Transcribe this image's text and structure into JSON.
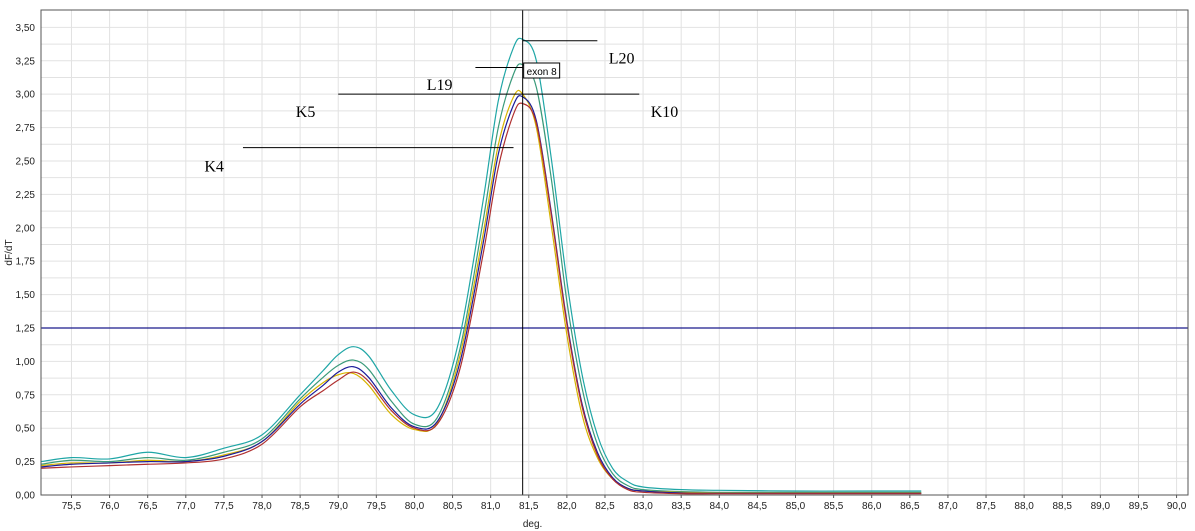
{
  "chart_data": {
    "type": "line",
    "xlabel": "deg.",
    "ylabel": "dF/dT",
    "xlim": [
      75.1,
      90.15
    ],
    "ylim": [
      0.0,
      3.63
    ],
    "xticks": [
      "75,5",
      "76,0",
      "76,5",
      "77,0",
      "77,5",
      "78,0",
      "78,5",
      "79,0",
      "79,5",
      "80,0",
      "80,5",
      "81,0",
      "81,5",
      "82,0",
      "82,5",
      "83,0",
      "83,5",
      "84,0",
      "84,5",
      "85,0",
      "85,5",
      "86,0",
      "86,5",
      "87,0",
      "87,5",
      "88,0",
      "88,5",
      "89,0",
      "89,5",
      "90,0"
    ],
    "yticks": [
      "0,00",
      "0,25",
      "0,50",
      "0,75",
      "1,00",
      "1,25",
      "1,50",
      "1,75",
      "2,00",
      "2,25",
      "2,50",
      "2,75",
      "3,00",
      "3,25",
      "3,50"
    ],
    "grid": true,
    "threshold": {
      "y": 1.25,
      "color": "#1a1a8c"
    },
    "cursor": {
      "x": 81.42,
      "label": "exon 8"
    },
    "series": [
      {
        "color": "#1fa6a6",
        "x": [
          75.1,
          75.5,
          76.0,
          76.5,
          77.0,
          77.5,
          78.0,
          78.5,
          78.8,
          79.0,
          79.2,
          79.4,
          79.7,
          80.0,
          80.3,
          80.6,
          80.9,
          81.1,
          81.3,
          81.42,
          81.6,
          81.8,
          82.0,
          82.2,
          82.4,
          82.6,
          82.8,
          83.0,
          83.5,
          84.0,
          85.0,
          86.0,
          86.65
        ],
        "y": [
          0.25,
          0.28,
          0.27,
          0.32,
          0.28,
          0.35,
          0.45,
          0.75,
          0.93,
          1.05,
          1.11,
          1.04,
          0.78,
          0.6,
          0.65,
          1.2,
          2.2,
          2.95,
          3.35,
          3.41,
          3.25,
          2.5,
          1.6,
          0.9,
          0.45,
          0.2,
          0.1,
          0.06,
          0.04,
          0.035,
          0.03,
          0.03,
          0.03
        ]
      },
      {
        "color": "#3a9a7a",
        "x": [
          75.1,
          75.5,
          76.0,
          76.5,
          77.0,
          77.5,
          78.0,
          78.5,
          78.8,
          79.0,
          79.2,
          79.4,
          79.7,
          80.0,
          80.3,
          80.6,
          80.9,
          81.1,
          81.3,
          81.42,
          81.6,
          81.8,
          82.0,
          82.2,
          82.4,
          82.6,
          82.8,
          83.0,
          83.5,
          84.0,
          85.0,
          86.0,
          86.65
        ],
        "y": [
          0.23,
          0.26,
          0.25,
          0.28,
          0.26,
          0.32,
          0.42,
          0.72,
          0.88,
          0.97,
          1.01,
          0.94,
          0.7,
          0.53,
          0.58,
          1.1,
          2.05,
          2.75,
          3.15,
          3.22,
          3.05,
          2.35,
          1.45,
          0.8,
          0.38,
          0.16,
          0.07,
          0.04,
          0.025,
          0.02,
          0.02,
          0.02,
          0.02
        ]
      },
      {
        "color": "#d8b400",
        "x": [
          75.1,
          75.5,
          76.0,
          76.5,
          77.0,
          77.5,
          78.0,
          78.5,
          78.8,
          79.0,
          79.2,
          79.4,
          79.7,
          80.0,
          80.3,
          80.6,
          80.9,
          81.1,
          81.3,
          81.42,
          81.6,
          81.8,
          82.0,
          82.2,
          82.4,
          82.6,
          82.8,
          83.0,
          83.5,
          84.0,
          85.0,
          86.0,
          86.65
        ],
        "y": [
          0.22,
          0.24,
          0.24,
          0.26,
          0.25,
          0.3,
          0.4,
          0.7,
          0.84,
          0.9,
          0.91,
          0.82,
          0.6,
          0.49,
          0.54,
          1.05,
          1.95,
          2.62,
          2.98,
          3.0,
          2.75,
          2.0,
          1.2,
          0.6,
          0.28,
          0.12,
          0.05,
          0.03,
          0.02,
          0.015,
          0.015,
          0.015,
          0.015
        ]
      },
      {
        "color": "#1c1c9a",
        "x": [
          75.1,
          75.5,
          76.0,
          76.5,
          77.0,
          77.5,
          78.0,
          78.5,
          78.8,
          79.0,
          79.2,
          79.4,
          79.7,
          80.0,
          80.3,
          80.6,
          80.9,
          81.1,
          81.3,
          81.42,
          81.6,
          81.8,
          82.0,
          82.2,
          82.4,
          82.6,
          82.8,
          83.0,
          83.5,
          84.0,
          85.0,
          86.0,
          86.65
        ],
        "y": [
          0.21,
          0.23,
          0.24,
          0.25,
          0.25,
          0.29,
          0.4,
          0.68,
          0.82,
          0.92,
          0.96,
          0.88,
          0.65,
          0.51,
          0.55,
          1.0,
          1.88,
          2.55,
          2.92,
          2.98,
          2.8,
          2.1,
          1.3,
          0.68,
          0.32,
          0.13,
          0.05,
          0.03,
          0.015,
          0.012,
          0.012,
          0.012,
          0.012
        ]
      },
      {
        "color": "#b03030",
        "x": [
          75.1,
          75.5,
          76.0,
          76.5,
          77.0,
          77.5,
          78.0,
          78.5,
          78.8,
          79.0,
          79.2,
          79.4,
          79.7,
          80.0,
          80.3,
          80.6,
          80.9,
          81.1,
          81.3,
          81.42,
          81.6,
          81.8,
          82.0,
          82.2,
          82.4,
          82.6,
          82.8,
          83.0,
          83.5,
          84.0,
          85.0,
          86.0,
          86.65
        ],
        "y": [
          0.2,
          0.21,
          0.22,
          0.23,
          0.24,
          0.27,
          0.38,
          0.66,
          0.78,
          0.86,
          0.92,
          0.85,
          0.63,
          0.5,
          0.53,
          0.95,
          1.8,
          2.45,
          2.85,
          2.93,
          2.78,
          2.08,
          1.28,
          0.66,
          0.3,
          0.12,
          0.04,
          0.02,
          0.01,
          0.01,
          0.01,
          0.01,
          0.01
        ]
      }
    ],
    "annotations": [
      {
        "text": "L20",
        "x1": 81.42,
        "y1": 3.4,
        "x2": 82.4,
        "y2": 3.4,
        "lx": 82.55,
        "ly": 3.23,
        "anchor": "start"
      },
      {
        "text": "L19",
        "x1": 80.8,
        "y1": 3.2,
        "x2": 81.42,
        "y2": 3.2,
        "lx": 80.5,
        "ly": 3.03,
        "anchor": "end"
      },
      {
        "text": "K5",
        "x1": 79.0,
        "y1": 3.0,
        "x2": 81.42,
        "y2": 3.0,
        "lx": 78.7,
        "ly": 2.83,
        "anchor": "end"
      },
      {
        "text": "K10",
        "x1": 81.42,
        "y1": 3.0,
        "x2": 82.95,
        "y2": 3.0,
        "lx": 83.1,
        "ly": 2.83,
        "anchor": "start"
      },
      {
        "text": "K4",
        "x1": 77.75,
        "y1": 2.6,
        "x2": 81.3,
        "y2": 2.6,
        "lx": 77.5,
        "ly": 2.42,
        "anchor": "end"
      }
    ]
  }
}
